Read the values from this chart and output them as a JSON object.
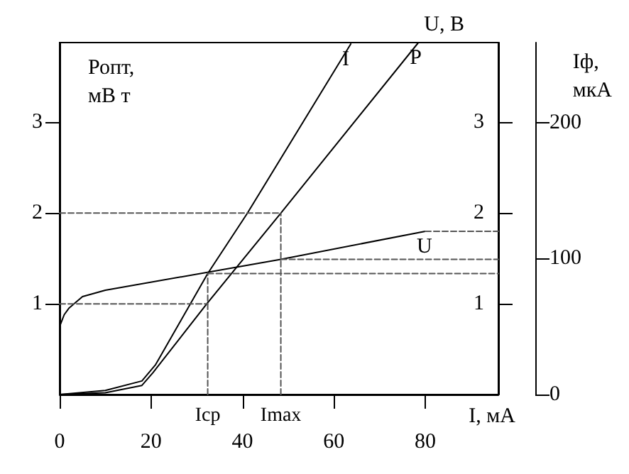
{
  "chart_data": {
    "type": "line",
    "xlabel": "I, мА",
    "ylabel": "Ропт, мВ т",
    "y2label": "U, В",
    "y3label": "Iф, мкА",
    "xlim": [
      0,
      96
    ],
    "xticks": [
      0,
      20,
      40,
      60,
      80
    ],
    "ylim": [
      0,
      3.88
    ],
    "yticks": [
      1,
      2,
      3
    ],
    "y2lim": [
      0,
      3.88
    ],
    "y2ticks": [
      1,
      2,
      3
    ],
    "y3lim": [
      0,
      259
    ],
    "y3ticks": [
      0,
      100,
      200
    ],
    "legend": false,
    "grid": false,
    "marker": "none",
    "series": [
      {
        "name": "I",
        "color": "#000000",
        "axis": "y3",
        "x": [
          0,
          10,
          18,
          21,
          32.4,
          41,
          63.7
        ],
        "values": [
          0,
          3,
          10,
          22,
          89,
          133,
          258
        ]
      },
      {
        "name": "P",
        "color": "#000000",
        "x": [
          0,
          10,
          18,
          20.4,
          32.2,
          48.4,
          78.5
        ],
        "values": [
          0,
          0.02,
          0.1,
          0.24,
          1,
          2,
          3.88
        ]
      },
      {
        "name": "U",
        "color": "#000000",
        "axis": "y2",
        "x": [
          0,
          1,
          2,
          5,
          10,
          48.4,
          80
        ],
        "values": [
          0.75,
          0.88,
          0.95,
          1.08,
          1.15,
          1.49,
          1.8
        ]
      },
      {
        "color": "#555555",
        "line_style": "dashed",
        "x": [
          0,
          48.4
        ],
        "values": [
          2,
          2
        ]
      },
      {
        "color": "#555555",
        "line_style": "dashed",
        "x": [
          48.4,
          48.4
        ],
        "values": [
          0,
          2
        ]
      },
      {
        "color": "#555555",
        "line_style": "dashed",
        "x": [
          0,
          32.4
        ],
        "values": [
          1,
          1
        ]
      },
      {
        "color": "#555555",
        "line_style": "dashed",
        "x": [
          32.4,
          32.4
        ],
        "values": [
          0,
          1.34
        ]
      },
      {
        "color": "#555555",
        "line_style": "dashed",
        "axis": "y2",
        "x": [
          80,
          96
        ],
        "values": [
          1.8,
          1.8
        ]
      },
      {
        "color": "#555555",
        "line_style": "dashed",
        "axis": "y2",
        "x": [
          48.4,
          96
        ],
        "values": [
          1.49,
          1.49
        ]
      },
      {
        "color": "#555555",
        "line_style": "dashed",
        "axis": "y3",
        "x": [
          32.4,
          96
        ],
        "values": [
          89,
          89
        ]
      }
    ],
    "annotations": [
      {
        "text": "Iср",
        "x": 32.4,
        "y": 0
      },
      {
        "text": "Imax",
        "x": 48.4,
        "y": 0
      }
    ]
  }
}
